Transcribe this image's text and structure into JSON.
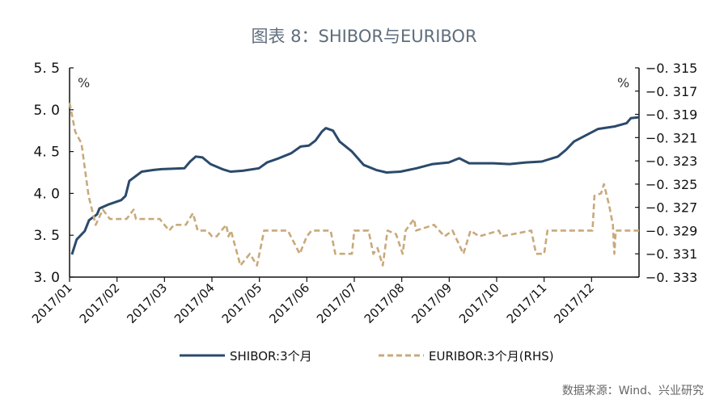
{
  "chart_data": {
    "type": "line",
    "title": "图表 8：SHIBOR与EURIBOR",
    "source": "数据来源：Wind、兴业研究",
    "left_axis": {
      "unit": "%",
      "ylim": [
        3.0,
        5.5
      ],
      "ticks": [
        "3.0",
        "3.5",
        "4.0",
        "4.5",
        "5.0",
        "5.5"
      ]
    },
    "right_axis": {
      "unit": "%",
      "ylim": [
        -0.333,
        -0.315
      ],
      "ticks": [
        "-0.333",
        "-0.331",
        "-0.329",
        "-0.327",
        "-0.325",
        "-0.323",
        "-0.321",
        "-0.319",
        "-0.317",
        "-0.315"
      ]
    },
    "x_ticks": [
      "2017/01",
      "2017/02",
      "2017/03",
      "2017/04",
      "2017/05",
      "2017/06",
      "2017/07",
      "2017/08",
      "2017/09",
      "2017/10",
      "2017/11",
      "2017/12"
    ],
    "x_unit_note": "x values are months elapsed since 2017/01",
    "xlim": [
      0,
      12
    ],
    "grid": false,
    "legend_position": "bottom",
    "colors": {
      "shibor": "#2b4a6b",
      "euribor": "#c9a97a",
      "axis": "#111111",
      "title": "#5f6d7c"
    },
    "series": [
      {
        "name": "SHIBOR:3个月",
        "axis": "left",
        "style": "solid",
        "x": [
          0.05,
          0.15,
          0.32,
          0.41,
          0.58,
          0.63,
          0.83,
          1.09,
          1.18,
          1.26,
          1.52,
          1.77,
          1.94,
          2.42,
          2.54,
          2.66,
          2.8,
          2.97,
          3.22,
          3.39,
          3.65,
          3.99,
          4.16,
          4.41,
          4.67,
          4.87,
          5.04,
          5.18,
          5.32,
          5.4,
          5.55,
          5.69,
          5.95,
          6.2,
          6.46,
          6.68,
          6.97,
          7.31,
          7.65,
          7.99,
          8.21,
          8.42,
          8.93,
          9.27,
          9.61,
          9.95,
          10.29,
          10.46,
          10.63,
          11.14,
          11.49,
          11.74,
          11.83,
          12.0
        ],
        "values": [
          3.27,
          3.45,
          3.55,
          3.68,
          3.75,
          3.82,
          3.87,
          3.92,
          3.97,
          4.15,
          4.26,
          4.28,
          4.29,
          4.3,
          4.38,
          4.44,
          4.43,
          4.35,
          4.29,
          4.26,
          4.27,
          4.3,
          4.37,
          4.42,
          4.48,
          4.56,
          4.57,
          4.63,
          4.74,
          4.78,
          4.75,
          4.62,
          4.5,
          4.34,
          4.28,
          4.25,
          4.26,
          4.3,
          4.35,
          4.37,
          4.42,
          4.36,
          4.36,
          4.35,
          4.37,
          4.38,
          4.44,
          4.52,
          4.62,
          4.77,
          4.8,
          4.84,
          4.9,
          4.91
        ]
      },
      {
        "name": "EURIBOR:3个月(RHS)",
        "axis": "right",
        "style": "dashed",
        "x": [
          0.0,
          0.12,
          0.25,
          0.4,
          0.55,
          0.7,
          0.85,
          1.2,
          1.35,
          1.4,
          1.9,
          2.0,
          2.1,
          2.2,
          2.45,
          2.6,
          2.7,
          2.9,
          3.0,
          3.1,
          3.3,
          3.35,
          3.4,
          3.6,
          3.8,
          3.95,
          4.1,
          4.6,
          4.85,
          5.0,
          5.1,
          5.5,
          5.6,
          5.95,
          6.0,
          6.3,
          6.4,
          6.49,
          6.6,
          6.7,
          6.88,
          7.02,
          7.08,
          7.26,
          7.3,
          7.68,
          7.9,
          8.07,
          8.3,
          8.45,
          8.63,
          9.05,
          9.1,
          9.73,
          9.83,
          10.0,
          10.07,
          11.02,
          11.06,
          11.2,
          11.26,
          11.37,
          11.45,
          11.48,
          11.51,
          12.0
        ],
        "values": [
          -0.318,
          -0.3205,
          -0.3215,
          -0.326,
          -0.3285,
          -0.3272,
          -0.328,
          -0.328,
          -0.3272,
          -0.328,
          -0.328,
          -0.3285,
          -0.329,
          -0.3285,
          -0.3285,
          -0.3275,
          -0.329,
          -0.329,
          -0.3295,
          -0.3295,
          -0.3285,
          -0.3295,
          -0.329,
          -0.332,
          -0.331,
          -0.332,
          -0.329,
          -0.329,
          -0.331,
          -0.3295,
          -0.329,
          -0.329,
          -0.331,
          -0.331,
          -0.329,
          -0.329,
          -0.331,
          -0.3305,
          -0.332,
          -0.329,
          -0.3293,
          -0.331,
          -0.329,
          -0.328,
          -0.329,
          -0.3285,
          -0.3295,
          -0.329,
          -0.331,
          -0.329,
          -0.3295,
          -0.329,
          -0.3295,
          -0.329,
          -0.331,
          -0.331,
          -0.329,
          -0.329,
          -0.326,
          -0.3258,
          -0.325,
          -0.3268,
          -0.3285,
          -0.331,
          -0.329,
          -0.329
        ]
      }
    ]
  }
}
